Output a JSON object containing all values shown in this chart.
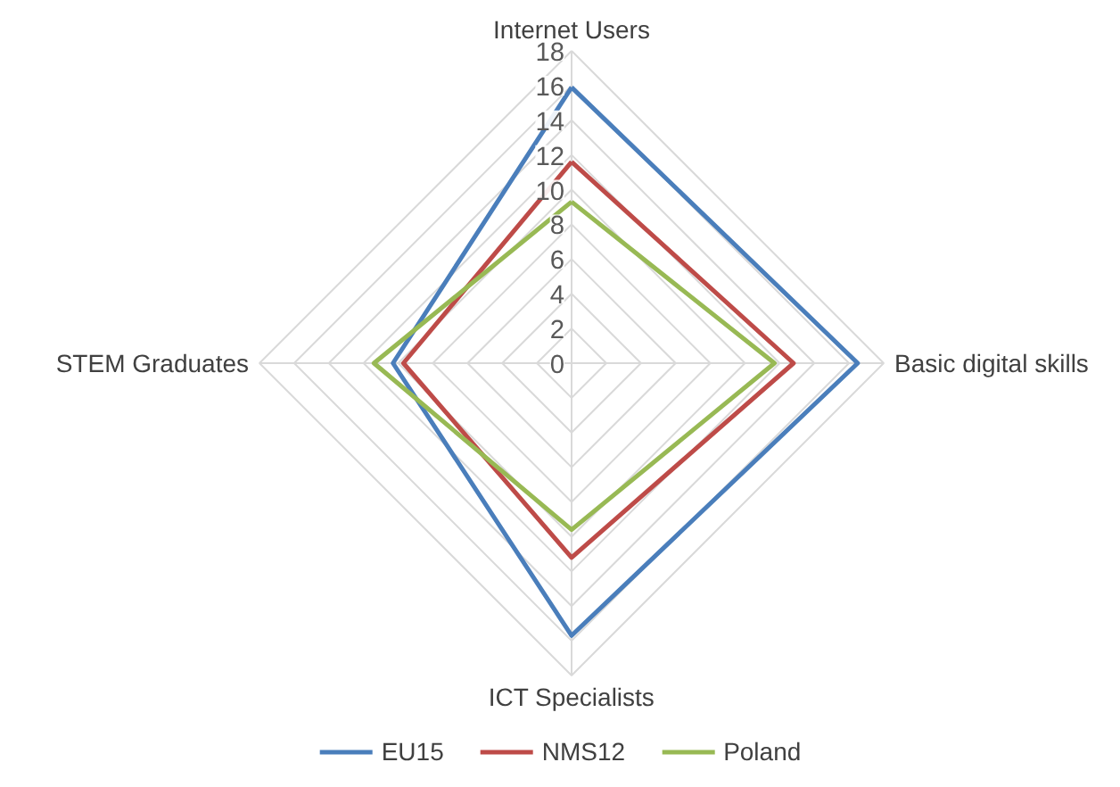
{
  "chart_data": {
    "type": "radar",
    "categories": [
      "Internet Users",
      "Basic digital skills",
      "ICT Specialists",
      "STEM Graduates"
    ],
    "series": [
      {
        "name": "EU15",
        "color": "#4a7ebb",
        "values": [
          15.9,
          16.5,
          15.7,
          10.3
        ]
      },
      {
        "name": "NMS12",
        "color": "#be4b48",
        "values": [
          11.6,
          12.8,
          11.2,
          9.7
        ]
      },
      {
        "name": "Poland",
        "color": "#98b954",
        "values": [
          9.3,
          11.7,
          9.6,
          11.4
        ]
      }
    ],
    "ylim": [
      0,
      18
    ],
    "yticks": [
      0,
      2,
      4,
      6,
      8,
      10,
      12,
      14,
      16,
      18
    ],
    "grid": true,
    "legend": "bottom",
    "marker": "none",
    "line_style": "solid"
  }
}
